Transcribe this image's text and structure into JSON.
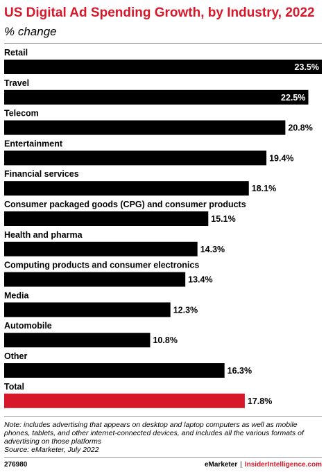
{
  "header": {
    "title": "US Digital Ad Spending Growth, by Industry, 2022",
    "subtitle": "% change"
  },
  "chart_data": {
    "type": "bar",
    "orientation": "horizontal",
    "title": "US Digital Ad Spending Growth, by Industry, 2022",
    "subtitle": "% change",
    "categories": [
      "Retail",
      "Travel",
      "Telecom",
      "Entertainment",
      "Financial services",
      "Consumer packaged goods (CPG) and consumer products",
      "Health and pharma",
      "Computing products and consumer electronics",
      "Media",
      "Automobile",
      "Other",
      "Total"
    ],
    "values": [
      23.5,
      22.5,
      20.8,
      19.4,
      18.1,
      15.1,
      14.3,
      13.4,
      12.3,
      10.8,
      16.3,
      17.8
    ],
    "value_labels": [
      "23.5%",
      "22.5%",
      "20.8%",
      "19.4%",
      "18.1%",
      "15.1%",
      "14.3%",
      "13.4%",
      "12.3%",
      "10.8%",
      "16.3%",
      "17.8%"
    ],
    "bar_colors": [
      "#000000",
      "#000000",
      "#000000",
      "#000000",
      "#000000",
      "#000000",
      "#000000",
      "#000000",
      "#000000",
      "#000000",
      "#000000",
      "#d7182a"
    ],
    "xlim": [
      0,
      23.5
    ],
    "grid": false,
    "legend": "none"
  },
  "notes": {
    "note": "Note: includes advertising that appears on desktop and laptop computers as well as mobile phones, tablets, and other internet-connected devices, and includes all the various formats of advertising on those platforms",
    "source": "Source: eMarketer, July 2022"
  },
  "footer": {
    "chart_id": "276980",
    "brand": "eMarketer",
    "separator": "|",
    "site": "InsiderIntelligence.com"
  },
  "colors": {
    "accent": "#d7182a",
    "bar": "#000000",
    "rule": "#9a9a9a"
  }
}
